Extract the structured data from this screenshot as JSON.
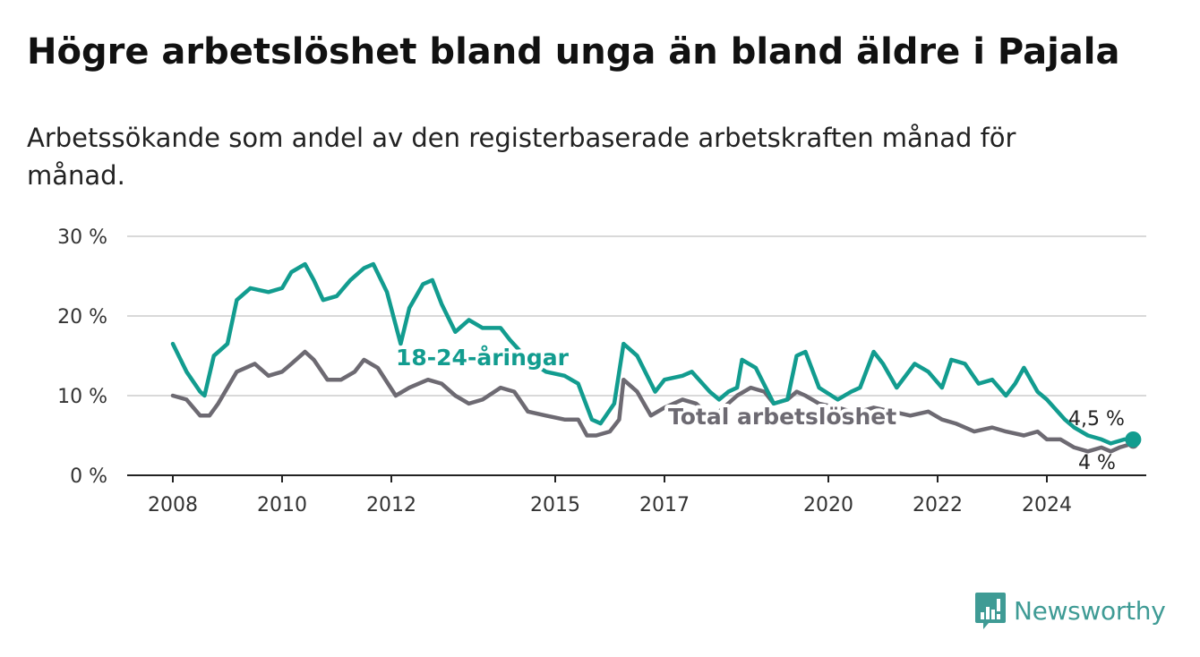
{
  "title": "Högre arbetslöshet bland unga än bland äldre i Pajala",
  "subtitle": "Arbetssökande som andel av den registerbaserade arbetskraften månad för månad.",
  "brand": {
    "name": "Newsworthy",
    "icon": "newsworthy-logo-icon",
    "color": "#3f9b95"
  },
  "chart_data": {
    "type": "line",
    "title": "Högre arbetslöshet bland unga än bland äldre i Pajala",
    "subtitle": "Arbetssökande som andel av den registerbaserade arbetskraften månad för månad.",
    "xlabel": "",
    "ylabel": "",
    "ylim": [
      0,
      30
    ],
    "xlim": [
      2008,
      2025.6
    ],
    "grid": true,
    "legend": "inline labels",
    "y_ticks": [
      {
        "value": 0,
        "label": "0 %"
      },
      {
        "value": 10,
        "label": "10 %"
      },
      {
        "value": 20,
        "label": "20 %"
      },
      {
        "value": 30,
        "label": "30 %"
      }
    ],
    "x_ticks": [
      "2008",
      "2010",
      "2012",
      "2015",
      "2017",
      "2020",
      "2022",
      "2024"
    ],
    "series": [
      {
        "name": "18-24-åringar",
        "color": "#129c8f",
        "end_label": "4,5 %",
        "points": [
          [
            2008.0,
            16.5
          ],
          [
            2008.25,
            13.0
          ],
          [
            2008.5,
            10.5
          ],
          [
            2008.58,
            10.0
          ],
          [
            2008.75,
            15.0
          ],
          [
            2009.0,
            16.5
          ],
          [
            2009.17,
            22.0
          ],
          [
            2009.42,
            23.5
          ],
          [
            2009.75,
            23.0
          ],
          [
            2010.0,
            23.5
          ],
          [
            2010.17,
            25.5
          ],
          [
            2010.42,
            26.5
          ],
          [
            2010.58,
            24.5
          ],
          [
            2010.75,
            22.0
          ],
          [
            2011.0,
            22.5
          ],
          [
            2011.25,
            24.5
          ],
          [
            2011.5,
            26.0
          ],
          [
            2011.67,
            26.5
          ],
          [
            2011.92,
            23.0
          ],
          [
            2012.17,
            16.5
          ],
          [
            2012.33,
            21.0
          ],
          [
            2012.58,
            24.0
          ],
          [
            2012.75,
            24.5
          ],
          [
            2012.92,
            21.5
          ],
          [
            2013.17,
            18.0
          ],
          [
            2013.42,
            19.5
          ],
          [
            2013.67,
            18.5
          ],
          [
            2014.0,
            18.5
          ],
          [
            2014.17,
            17.0
          ],
          [
            2014.5,
            14.5
          ],
          [
            2014.83,
            13.0
          ],
          [
            2015.17,
            12.5
          ],
          [
            2015.42,
            11.5
          ],
          [
            2015.67,
            7.0
          ],
          [
            2015.83,
            6.5
          ],
          [
            2016.08,
            9.0
          ],
          [
            2016.25,
            16.5
          ],
          [
            2016.5,
            15.0
          ],
          [
            2016.83,
            10.5
          ],
          [
            2017.0,
            12.0
          ],
          [
            2017.33,
            12.5
          ],
          [
            2017.5,
            13.0
          ],
          [
            2017.83,
            10.5
          ],
          [
            2018.0,
            9.5
          ],
          [
            2018.17,
            10.5
          ],
          [
            2018.33,
            11.0
          ],
          [
            2018.42,
            14.5
          ],
          [
            2018.67,
            13.5
          ],
          [
            2019.0,
            9.0
          ],
          [
            2019.25,
            9.5
          ],
          [
            2019.42,
            15.0
          ],
          [
            2019.58,
            15.5
          ],
          [
            2019.83,
            11.0
          ],
          [
            2020.17,
            9.5
          ],
          [
            2020.42,
            10.5
          ],
          [
            2020.58,
            11.0
          ],
          [
            2020.83,
            15.5
          ],
          [
            2021.0,
            14.0
          ],
          [
            2021.25,
            11.0
          ],
          [
            2021.58,
            14.0
          ],
          [
            2021.83,
            13.0
          ],
          [
            2022.08,
            11.0
          ],
          [
            2022.25,
            14.5
          ],
          [
            2022.5,
            14.0
          ],
          [
            2022.75,
            11.5
          ],
          [
            2023.0,
            12.0
          ],
          [
            2023.25,
            10.0
          ],
          [
            2023.42,
            11.5
          ],
          [
            2023.58,
            13.5
          ],
          [
            2023.83,
            10.5
          ],
          [
            2024.0,
            9.5
          ],
          [
            2024.33,
            7.0
          ],
          [
            2024.5,
            6.0
          ],
          [
            2024.75,
            5.0
          ],
          [
            2025.0,
            4.5
          ],
          [
            2025.17,
            4.0
          ],
          [
            2025.42,
            4.5
          ],
          [
            2025.58,
            4.5
          ]
        ]
      },
      {
        "name": "Total arbetslöshet",
        "color": "#6d6a72",
        "end_label": "4 %",
        "points": [
          [
            2008.0,
            10.0
          ],
          [
            2008.25,
            9.5
          ],
          [
            2008.5,
            7.5
          ],
          [
            2008.67,
            7.5
          ],
          [
            2008.83,
            9.0
          ],
          [
            2009.0,
            11.0
          ],
          [
            2009.17,
            13.0
          ],
          [
            2009.5,
            14.0
          ],
          [
            2009.75,
            12.5
          ],
          [
            2010.0,
            13.0
          ],
          [
            2010.17,
            14.0
          ],
          [
            2010.42,
            15.5
          ],
          [
            2010.58,
            14.5
          ],
          [
            2010.83,
            12.0
          ],
          [
            2011.08,
            12.0
          ],
          [
            2011.33,
            13.0
          ],
          [
            2011.5,
            14.5
          ],
          [
            2011.75,
            13.5
          ],
          [
            2012.08,
            10.0
          ],
          [
            2012.33,
            11.0
          ],
          [
            2012.67,
            12.0
          ],
          [
            2012.92,
            11.5
          ],
          [
            2013.17,
            10.0
          ],
          [
            2013.42,
            9.0
          ],
          [
            2013.67,
            9.5
          ],
          [
            2014.0,
            11.0
          ],
          [
            2014.25,
            10.5
          ],
          [
            2014.5,
            8.0
          ],
          [
            2014.83,
            7.5
          ],
          [
            2015.17,
            7.0
          ],
          [
            2015.42,
            7.0
          ],
          [
            2015.58,
            5.0
          ],
          [
            2015.75,
            5.0
          ],
          [
            2016.0,
            5.5
          ],
          [
            2016.17,
            7.0
          ],
          [
            2016.25,
            12.0
          ],
          [
            2016.5,
            10.5
          ],
          [
            2016.75,
            7.5
          ],
          [
            2017.0,
            8.5
          ],
          [
            2017.33,
            9.5
          ],
          [
            2017.58,
            9.0
          ],
          [
            2017.83,
            7.5
          ],
          [
            2018.0,
            8.0
          ],
          [
            2018.33,
            10.0
          ],
          [
            2018.58,
            11.0
          ],
          [
            2018.83,
            10.5
          ],
          [
            2019.0,
            9.0
          ],
          [
            2019.25,
            9.5
          ],
          [
            2019.42,
            10.5
          ],
          [
            2019.58,
            10.0
          ],
          [
            2019.83,
            9.0
          ],
          [
            2020.17,
            8.5
          ],
          [
            2020.42,
            8.0
          ],
          [
            2020.58,
            8.0
          ],
          [
            2020.83,
            8.5
          ],
          [
            2021.17,
            8.0
          ],
          [
            2021.5,
            7.5
          ],
          [
            2021.83,
            8.0
          ],
          [
            2022.08,
            7.0
          ],
          [
            2022.33,
            6.5
          ],
          [
            2022.67,
            5.5
          ],
          [
            2023.0,
            6.0
          ],
          [
            2023.25,
            5.5
          ],
          [
            2023.58,
            5.0
          ],
          [
            2023.83,
            5.5
          ],
          [
            2024.0,
            4.5
          ],
          [
            2024.25,
            4.5
          ],
          [
            2024.5,
            3.5
          ],
          [
            2024.75,
            3.0
          ],
          [
            2025.0,
            3.5
          ],
          [
            2025.17,
            3.0
          ],
          [
            2025.33,
            3.5
          ],
          [
            2025.58,
            4.0
          ]
        ]
      }
    ]
  }
}
